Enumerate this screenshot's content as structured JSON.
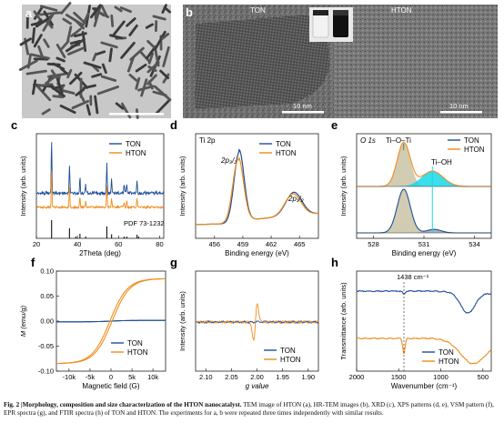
{
  "panels": {
    "a": {
      "label": "a"
    },
    "b": {
      "label": "b",
      "left_label": "TON",
      "right_label": "HTON",
      "scale_left": "10 nm",
      "scale_right": "10 nm"
    },
    "c": {
      "label": "c"
    },
    "d": {
      "label": "d"
    },
    "e": {
      "label": "e"
    },
    "f": {
      "label": "f"
    },
    "g": {
      "label": "g"
    },
    "h": {
      "label": "h"
    }
  },
  "caption": {
    "prefix": "Fig. 2 |",
    "title": "Morphology, composition and size characterization of the HTON nanocatalyst.",
    "text": "TEM image of HTON (a), HR-TEM images (b), XRD (c), XPS patterns (d, e), VSM pattern (f), EPR spectra (g), and FTIR spectra (h) of TON and HTON. The experiments for a, b were repeated three times independently with similar results."
  },
  "colors": {
    "ton": "#1f4e96",
    "hton": "#f08c1c",
    "shade": "#c9c3a4",
    "cyan": "#19d8e8"
  },
  "chart_data": [
    {
      "panel": "c",
      "type": "line",
      "xlabel": "2Theta (deg)",
      "ylabel": "Intensity (arb. units)",
      "xlim": [
        20,
        82
      ],
      "xticks": [
        20,
        40,
        60,
        80
      ],
      "legend": [
        "TON",
        "HTON"
      ],
      "reference_label": "PDF 73-1232",
      "reference_peaks": [
        27.4,
        36.1,
        39.2,
        41.2,
        44.0,
        54.3,
        56.6,
        62.7,
        64.0,
        69.0,
        69.8
      ],
      "reference_heights": [
        1.0,
        0.55,
        0.1,
        0.25,
        0.1,
        0.65,
        0.22,
        0.1,
        0.1,
        0.2,
        0.1
      ],
      "series": [
        {
          "name": "TON",
          "peaks": [
            [
              27.4,
              1.0
            ],
            [
              36.1,
              0.55
            ],
            [
              41.2,
              0.3
            ],
            [
              44.0,
              0.15
            ],
            [
              54.3,
              0.6
            ],
            [
              56.6,
              0.25
            ],
            [
              62.7,
              0.15
            ],
            [
              64.0,
              0.15
            ],
            [
              69.0,
              0.25
            ]
          ]
        },
        {
          "name": "HTON",
          "peaks": [
            [
              27.4,
              1.0
            ],
            [
              36.1,
              0.55
            ],
            [
              41.2,
              0.3
            ],
            [
              44.0,
              0.15
            ],
            [
              54.3,
              0.6
            ],
            [
              56.6,
              0.25
            ],
            [
              62.7,
              0.15
            ],
            [
              64.0,
              0.15
            ],
            [
              69.0,
              0.25
            ]
          ]
        }
      ]
    },
    {
      "panel": "d",
      "type": "line",
      "title": "Ti 2p",
      "xlabel": "Binding energy (eV)",
      "ylabel": "Intensity (arb. units)",
      "xlim": [
        454,
        467
      ],
      "xticks": [
        456,
        459,
        462,
        465
      ],
      "legend": [
        "TON",
        "HTON"
      ],
      "annotations": [
        "2p3/2",
        "2p1/2"
      ],
      "series": [
        {
          "name": "TON",
          "peaks": [
            [
              458.6,
              1.0,
              0.75
            ],
            [
              464.4,
              0.33,
              1.2
            ]
          ]
        },
        {
          "name": "HTON",
          "peaks": [
            [
              458.5,
              0.9,
              0.8
            ],
            [
              464.3,
              0.31,
              1.2
            ]
          ]
        }
      ]
    },
    {
      "panel": "e",
      "type": "line",
      "title": "O 1s",
      "xlabel": "Binding energy (eV)",
      "ylabel": "Intensity (arb. units)",
      "xlim": [
        527,
        535
      ],
      "xticks": [
        528,
        531,
        534
      ],
      "legend": [
        "TON",
        "HTON"
      ],
      "annotations": [
        "Ti–O–Ti",
        "Ti–OH"
      ],
      "series": [
        {
          "name": "TON",
          "peaks": [
            [
              529.8,
              1.0,
              0.55
            ],
            [
              531.6,
              0.08,
              0.6
            ]
          ]
        },
        {
          "name": "HTON",
          "peaks": [
            [
              529.8,
              1.0,
              0.55
            ],
            [
              531.5,
              0.35,
              0.9
            ]
          ]
        }
      ]
    },
    {
      "panel": "f",
      "type": "line",
      "xlabel": "Magnetic field (G)",
      "ylabel": "M (emu/g)",
      "xlim": [
        -13000,
        13000
      ],
      "ylim": [
        -0.1,
        0.1
      ],
      "xticks": [
        -10000,
        -5000,
        0,
        5000,
        10000
      ],
      "xtick_labels": [
        "-10k",
        "-5k",
        "0",
        "5k",
        "10k"
      ],
      "yticks": [
        -0.1,
        -0.05,
        0.0,
        0.05,
        0.1
      ],
      "ytick_labels": [
        "-0.10",
        "-0.05",
        "0.00",
        "0.05",
        "0.10"
      ],
      "legend": [
        "TON",
        "HTON"
      ],
      "series": [
        {
          "name": "TON",
          "saturation": 0.0015
        },
        {
          "name": "HTON",
          "saturation": 0.085
        }
      ]
    },
    {
      "panel": "g",
      "type": "line",
      "xlabel": "g value",
      "ylabel": "Intensity (arb. units)",
      "xlim": [
        2.12,
        1.88
      ],
      "xticks": [
        2.1,
        2.05,
        2.0,
        1.95,
        1.9
      ],
      "xtick_labels": [
        "2.10",
        "2.05",
        "2.00",
        "1.95",
        "1.90"
      ],
      "legend": [
        "TON",
        "HTON"
      ],
      "series": [
        {
          "name": "TON",
          "g_center": 2.003
        },
        {
          "name": "HTON",
          "g_center": 2.003
        }
      ]
    },
    {
      "panel": "h",
      "type": "line",
      "xlabel": "Wavenumber (cm-1)",
      "ylabel": "Transmittance (arb. units)",
      "xlim": [
        2000,
        400
      ],
      "xticks": [
        2000,
        1500,
        1000,
        500
      ],
      "legend": [
        "TON",
        "HTON"
      ],
      "annotations": [
        "1438 cm-1"
      ],
      "marker_x": 1438,
      "series": [
        {
          "name": "TON",
          "dips": [
            [
              1438,
              0.12,
              20
            ],
            [
              680,
              0.75,
              120
            ]
          ]
        },
        {
          "name": "HTON",
          "dips": [
            [
              1438,
              0.55,
              20
            ],
            [
              620,
              0.8,
              200
            ]
          ]
        }
      ]
    }
  ]
}
